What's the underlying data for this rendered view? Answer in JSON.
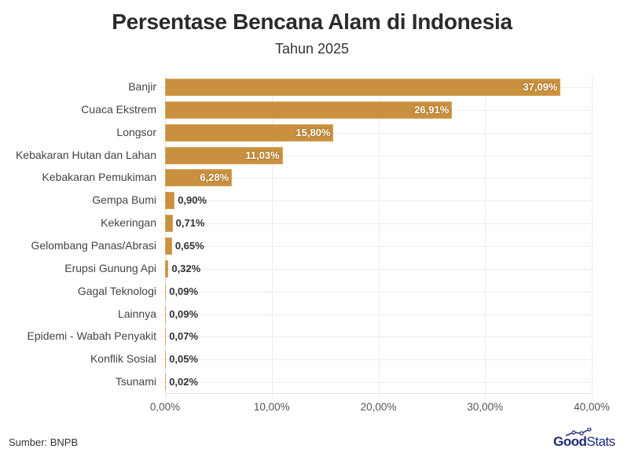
{
  "header": {
    "title": "Persentase Bencana Alam di Indonesia",
    "subtitle": "Tahun 2025"
  },
  "footer": {
    "source": "Sumber: BNPB",
    "logo_bold": "Good",
    "logo_light": "Stats"
  },
  "colors": {
    "bar": "#C9913F",
    "text": "#333333",
    "logo": "#1F2A7A"
  },
  "chart_data": {
    "type": "bar",
    "orientation": "horizontal",
    "title": "Persentase Bencana Alam di Indonesia",
    "subtitle": "Tahun 2025",
    "xlabel": "",
    "ylabel": "",
    "xlim": [
      0,
      40
    ],
    "x_ticks": [
      "0,00%",
      "10,00%",
      "20,00%",
      "30,00%",
      "40,00%"
    ],
    "grid": true,
    "legend": "none",
    "categories": [
      "Banjir",
      "Cuaca Ekstrem",
      "Longsor",
      "Kebakaran Hutan dan Lahan",
      "Kebakaran Pemukiman",
      "Gempa Bumi",
      "Kekeringan",
      "Gelombang Panas/Abrasi",
      "Erupsi Gunung Api",
      "Gagal Teknologi",
      "Lainnya",
      "Epidemi - Wabah Penyakit",
      "Konflik Sosial",
      "Tsunami"
    ],
    "values": [
      37.09,
      26.91,
      15.8,
      11.03,
      6.28,
      0.9,
      0.71,
      0.65,
      0.32,
      0.09,
      0.09,
      0.07,
      0.05,
      0.02
    ],
    "value_labels": [
      "37,09%",
      "26,91%",
      "15,80%",
      "11,03%",
      "6,28%",
      "0,90%",
      "0,71%",
      "0,65%",
      "0,32%",
      "0,09%",
      "0,09%",
      "0,07%",
      "0,05%",
      "0,02%"
    ],
    "source": "Sumber: BNPB"
  }
}
